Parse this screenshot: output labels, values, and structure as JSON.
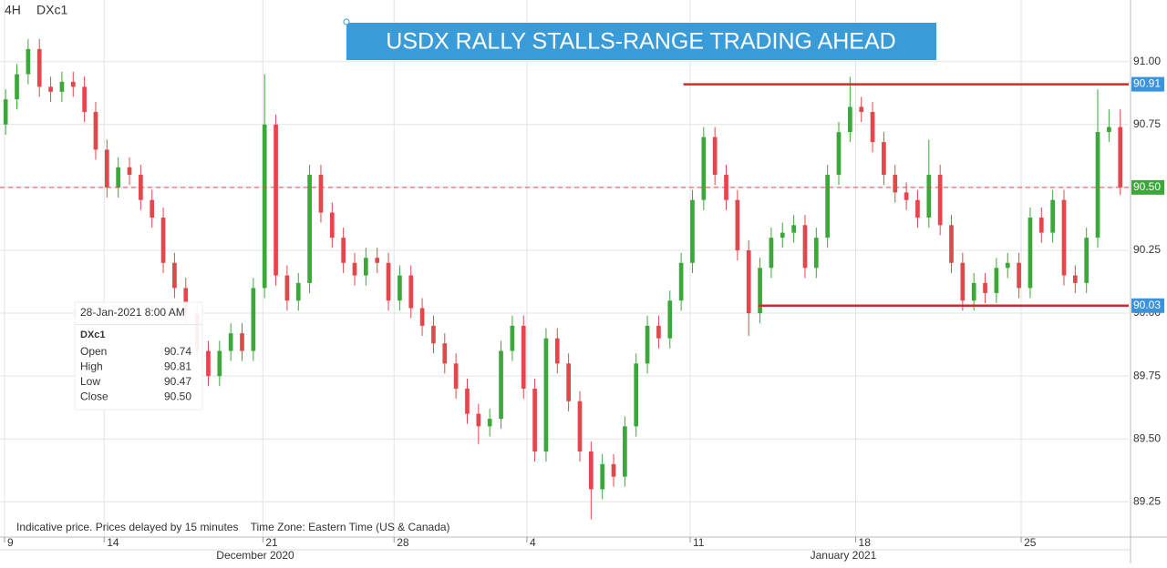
{
  "chart_data": {
    "type": "candlestick",
    "title": "USDX RALLY STALLS-RANGE TRADING AHEAD",
    "interval": "4H",
    "symbol": "DXc1",
    "footnote": "Indicative price. Prices delayed by 15 minutes    Time Zone: Eastern Time (US & Canada)",
    "month_labels": [
      "December 2020",
      "January 2021"
    ],
    "up_color": "#3da83a",
    "down_color": "#e2474b",
    "grid": true,
    "ylim": [
      89.11,
      91.245
    ],
    "yticks": [
      89.25,
      {
        "value": 89.5,
        "label": "89.50"
      },
      89.75,
      {
        "value": 90,
        "label": "90.00"
      },
      90.25,
      {
        "value": 90.5,
        "label": "90.50"
      },
      90.75,
      {
        "value": 91,
        "label": "91.00"
      }
    ],
    "xlim": [
      -0.5,
      99.75
    ],
    "xticks": [
      {
        "value": -0.1,
        "label": "9"
      },
      {
        "value": 8.75,
        "label": "14"
      },
      {
        "value": 22.85,
        "label": "21"
      },
      {
        "value": 34.5,
        "label": "28"
      },
      {
        "value": 46.3,
        "label": "4"
      },
      {
        "value": 60.8,
        "label": "11"
      },
      {
        "value": 75.5,
        "label": "18"
      },
      {
        "value": 90.2,
        "label": "25"
      }
    ],
    "open": [
      90.75,
      90.85,
      90.95,
      91.05,
      90.9,
      90.88,
      90.92,
      90.9,
      90.8,
      90.65,
      90.5,
      90.58,
      90.55,
      90.45,
      90.38,
      90.2,
      90.1,
      90.0,
      89.85,
      89.75,
      89.85,
      89.92,
      89.85,
      90.1,
      90.75,
      90.15,
      90.05,
      90.12,
      90.55,
      90.4,
      90.3,
      90.2,
      90.15,
      90.22,
      90.2,
      90.05,
      90.15,
      90.02,
      89.95,
      89.88,
      89.8,
      89.7,
      89.6,
      89.55,
      89.58,
      89.85,
      89.95,
      89.7,
      89.45,
      89.9,
      89.8,
      89.65,
      89.45,
      89.3,
      89.4,
      89.35,
      89.55,
      89.8,
      89.95,
      89.9,
      90.05,
      90.2,
      90.45,
      90.7,
      90.55,
      90.45,
      90.25,
      90.0,
      90.18,
      90.3,
      90.32,
      90.35,
      90.18,
      90.3,
      90.55,
      90.72,
      90.82,
      90.8,
      90.68,
      90.55,
      90.48,
      90.45,
      90.38,
      90.55,
      90.35,
      90.2,
      90.05,
      90.12,
      90.08,
      90.18,
      90.2,
      90.1,
      90.38,
      90.32,
      90.45,
      90.15,
      90.12,
      90.3,
      90.72,
      90.74
    ],
    "high": [
      90.89,
      90.99,
      91.09,
      91.09,
      90.94,
      90.96,
      90.96,
      90.94,
      90.84,
      90.69,
      90.62,
      90.62,
      90.59,
      90.49,
      90.42,
      90.24,
      90.14,
      90.04,
      89.89,
      89.89,
      89.96,
      89.96,
      90.14,
      90.95,
      90.79,
      90.19,
      90.16,
      90.59,
      90.59,
      90.44,
      90.34,
      90.24,
      90.26,
      90.26,
      90.24,
      90.19,
      90.19,
      90.06,
      89.99,
      89.92,
      89.84,
      89.74,
      89.64,
      89.62,
      89.89,
      89.99,
      89.99,
      89.74,
      89.94,
      89.94,
      89.84,
      89.69,
      89.49,
      89.44,
      89.44,
      89.59,
      89.84,
      89.99,
      89.99,
      90.09,
      90.24,
      90.49,
      90.74,
      90.74,
      90.59,
      90.49,
      90.29,
      90.22,
      90.34,
      90.36,
      90.39,
      90.39,
      90.34,
      90.59,
      90.76,
      90.94,
      90.86,
      90.84,
      90.72,
      90.59,
      90.52,
      90.49,
      90.69,
      90.59,
      90.39,
      90.24,
      90.16,
      90.16,
      90.22,
      90.24,
      90.24,
      90.42,
      90.42,
      90.49,
      90.49,
      90.19,
      90.34,
      90.89,
      90.81,
      90.81
    ],
    "low": [
      90.71,
      90.81,
      90.91,
      90.86,
      90.84,
      90.84,
      90.86,
      90.76,
      90.61,
      90.46,
      90.46,
      90.51,
      90.41,
      90.34,
      90.16,
      90.06,
      89.96,
      89.81,
      89.71,
      89.71,
      89.81,
      89.81,
      89.81,
      90.06,
      90.11,
      90.01,
      90.01,
      90.08,
      90.36,
      90.26,
      90.16,
      90.11,
      90.11,
      90.16,
      90.01,
      90.01,
      89.98,
      89.91,
      89.84,
      89.76,
      89.66,
      89.56,
      89.48,
      89.51,
      89.54,
      89.81,
      89.66,
      89.41,
      89.41,
      89.76,
      89.61,
      89.41,
      89.18,
      89.26,
      89.31,
      89.31,
      89.51,
      89.76,
      89.86,
      89.86,
      90.01,
      90.16,
      90.41,
      90.51,
      90.41,
      90.21,
      89.91,
      89.96,
      90.14,
      90.26,
      90.28,
      90.14,
      90.14,
      90.26,
      90.51,
      90.68,
      90.76,
      90.64,
      90.51,
      90.44,
      90.41,
      90.34,
      90.34,
      90.31,
      90.16,
      90.01,
      90.01,
      90.04,
      90.04,
      90.14,
      90.06,
      90.06,
      90.28,
      90.28,
      90.11,
      90.08,
      90.08,
      90.26,
      90.68,
      90.47
    ],
    "close": [
      90.85,
      90.95,
      91.05,
      90.9,
      90.88,
      90.92,
      90.9,
      90.8,
      90.65,
      90.5,
      90.58,
      90.55,
      90.45,
      90.38,
      90.2,
      90.1,
      90.0,
      89.85,
      89.75,
      89.85,
      89.92,
      89.85,
      90.1,
      90.75,
      90.15,
      90.05,
      90.12,
      90.55,
      90.4,
      90.3,
      90.2,
      90.15,
      90.22,
      90.2,
      90.05,
      90.15,
      90.02,
      89.95,
      89.88,
      89.8,
      89.7,
      89.6,
      89.55,
      89.58,
      89.85,
      89.95,
      89.7,
      89.45,
      89.9,
      89.8,
      89.65,
      89.45,
      89.3,
      89.4,
      89.35,
      89.55,
      89.8,
      89.95,
      89.9,
      90.05,
      90.2,
      90.45,
      90.7,
      90.55,
      90.45,
      90.25,
      90.0,
      90.18,
      90.3,
      90.32,
      90.35,
      90.18,
      90.3,
      90.55,
      90.72,
      90.82,
      90.8,
      90.68,
      90.55,
      90.48,
      90.45,
      90.38,
      90.55,
      90.35,
      90.2,
      90.05,
      90.12,
      90.08,
      90.18,
      90.2,
      90.1,
      90.38,
      90.32,
      90.45,
      90.15,
      90.12,
      90.3,
      90.72,
      90.74,
      90.5
    ],
    "levels": [
      {
        "value": 90.91,
        "label": "90.91",
        "start": 60.2,
        "style": "solid",
        "color": "#d9262b",
        "tag_color": "#3b93dc"
      },
      {
        "value": 90.5,
        "label": "90.50",
        "start": -0.5,
        "style": "dashed",
        "color": "#e2474b",
        "tag_color": "#3da83a"
      },
      {
        "value": 90.03,
        "label": "90.03",
        "start": 66.9,
        "style": "solid",
        "color": "#d9262b",
        "tag_color": "#3b93dc"
      }
    ],
    "tooltip": {
      "date": "28-Jan-2021 8:00 AM",
      "symbol": "DXc1",
      "rows": [
        {
          "label": "Open",
          "value": "90.74"
        },
        {
          "label": "High",
          "value": "90.81"
        },
        {
          "label": "Low",
          "value": "90.47"
        },
        {
          "label": "Close",
          "value": "90.50"
        }
      ]
    }
  }
}
